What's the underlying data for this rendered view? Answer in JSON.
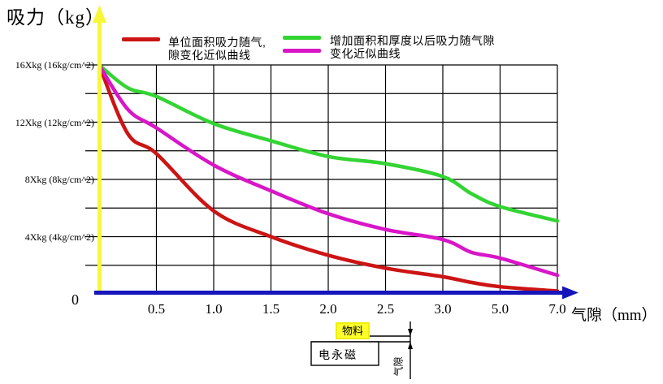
{
  "title": "吸力（kg）",
  "legend": {
    "entry1": {
      "label_line1": "单位面积吸力随气,",
      "label_line2": "隙变化近似曲线",
      "color": "#cc1414"
    },
    "entry2": {
      "label_line1": "增加面积和厚度以后吸力随气隙",
      "label_line2": "变化近似曲线",
      "color_green": "#33d433",
      "color_magenta": "#d816c8"
    }
  },
  "y_axis": {
    "labels": [
      "16Xkg (16kg/cm^2)",
      "12Xkg (12kg/cm^2)",
      "8Xkg (8kg/cm^2)",
      "4Xkg (4kg/cm^2)"
    ],
    "zero": "0",
    "axis_color": "#f7f73a"
  },
  "x_axis": {
    "ticks": [
      "0.5",
      "1.0",
      "1.5",
      "2.0",
      "2.5",
      "3.0",
      "5.0",
      "7.0"
    ],
    "label": "气隙（mm）",
    "axis_color": "#1515bb"
  },
  "diagram": {
    "material": "物料",
    "magnet": "电永磁",
    "gap": "气隙"
  },
  "chart_data": {
    "type": "line",
    "title": "吸力（kg）",
    "xlabel": "气隙（mm）",
    "ylabel": "吸力（kg）",
    "x_tick_values": [
      0.5,
      1.0,
      1.5,
      2.0,
      2.5,
      3.0,
      5.0,
      7.0
    ],
    "x_axis_note": "non-linear axis: 0.5 mm per division up to 3.0 mm, then 2.0 mm per division",
    "ylim": [
      0,
      16
    ],
    "y_gridline_step": 2,
    "y_labeled_values": [
      16,
      12,
      8,
      4
    ],
    "grid": true,
    "legend_position": "top",
    "series": [
      {
        "name": "单位面积吸力随气隙变化近似曲线",
        "color": "#cc1414",
        "x": [
          0,
          0.25,
          0.5,
          1.0,
          1.5,
          2.0,
          2.5,
          3.0,
          4.0,
          5.0,
          7.0
        ],
        "values": [
          16,
          11.2,
          9.8,
          5.8,
          4.0,
          2.7,
          1.8,
          1.2,
          0.8,
          0.5,
          0.2
        ]
      },
      {
        "name": "增加面积和厚度以后吸力随气隙变化近似曲线",
        "color": "#33d433",
        "x": [
          0,
          0.25,
          0.5,
          1.0,
          1.5,
          2.0,
          2.5,
          3.0,
          4.0,
          5.0,
          7.0
        ],
        "values": [
          16,
          14.4,
          13.8,
          11.9,
          10.7,
          9.6,
          9.1,
          8.2,
          7.0,
          6.1,
          5.1
        ]
      },
      {
        "name": "增加面积和厚度以后吸力随气隙变化近似曲线",
        "color": "#d816c8",
        "x": [
          0,
          0.25,
          0.5,
          1.0,
          1.5,
          2.0,
          2.5,
          3.0,
          4.0,
          5.0,
          7.0
        ],
        "values": [
          16,
          12.9,
          11.6,
          9.0,
          7.2,
          5.6,
          4.5,
          3.8,
          2.9,
          2.5,
          1.3
        ]
      }
    ]
  }
}
